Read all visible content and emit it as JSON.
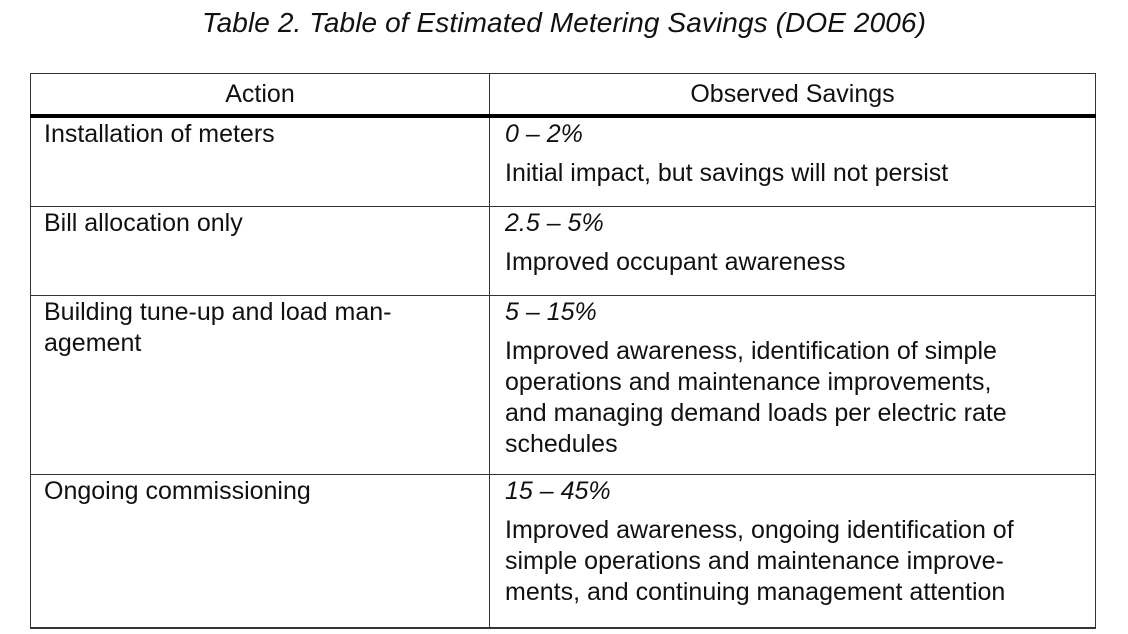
{
  "caption": "Table 2. Table of Estimated Metering Savings (DOE 2006)",
  "columns": {
    "action": "Action",
    "savings": "Observed Savings"
  },
  "rows": [
    {
      "action_lines": [
        "Installation of meters"
      ],
      "range": "0 – 2%",
      "description_lines": [
        "Initial impact, but savings will not persist"
      ]
    },
    {
      "action_lines": [
        "Bill allocation only"
      ],
      "range": "2.5 – 5%",
      "description_lines": [
        "Improved occupant awareness"
      ]
    },
    {
      "action_lines": [
        "Building tune-up and load man-",
        "agement"
      ],
      "range": "5 – 15%",
      "description_lines": [
        "Improved awareness, identification of simple",
        "operations and maintenance improvements,",
        "and managing demand loads per electric rate",
        "schedules"
      ]
    },
    {
      "action_lines": [
        "Ongoing commissioning"
      ],
      "range": "15 – 45%",
      "description_lines": [
        "Improved awareness, ongoing identification of",
        "simple operations and maintenance improve-",
        "ments, and continuing management attention"
      ]
    }
  ]
}
